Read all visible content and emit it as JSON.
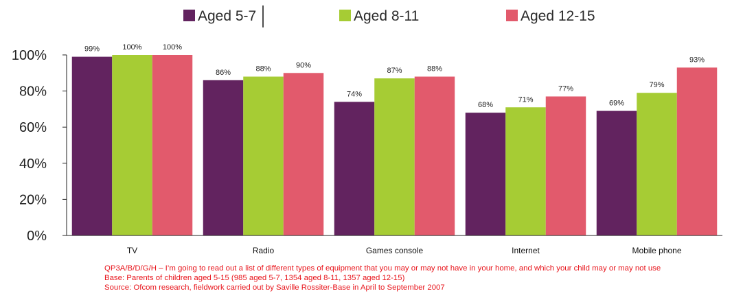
{
  "chart_data": {
    "type": "bar",
    "categories": [
      "TV",
      "Radio",
      "Games console",
      "Internet",
      "Mobile phone"
    ],
    "series": [
      {
        "name": "Aged 5-7",
        "color": "#62235f",
        "values": [
          99,
          86,
          74,
          68,
          69
        ],
        "labels": [
          "99%",
          "86%",
          "74%",
          "68%",
          "69%"
        ]
      },
      {
        "name": "Aged 8-11",
        "color": "#a6cc34",
        "values": [
          100,
          88,
          87,
          71,
          79
        ],
        "labels": [
          "100%",
          "88%",
          "87%",
          "71%",
          "79%"
        ]
      },
      {
        "name": "Aged 12-15",
        "color": "#e25a6c",
        "values": [
          100,
          90,
          88,
          77,
          93
        ],
        "labels": [
          "100%",
          "90%",
          "88%",
          "77%",
          "93%"
        ]
      }
    ],
    "ylim": [
      0,
      100
    ],
    "yticks": [
      0,
      20,
      40,
      60,
      80,
      100
    ],
    "ytick_labels": [
      "0%",
      "20%",
      "40%",
      "60%",
      "80%",
      "100%"
    ],
    "legend_position": "top",
    "grid": false
  },
  "notes": [
    "QP3A/B/D/G/H – I’m going to read out a list of different types of equipment that you may or may not have in your home, and which your child may or may not use",
    "Base: Parents of children aged 5-15 (985 aged 5-7, 1354 aged 8-11, 1357 aged 12-15)",
    "Source: Ofcom research, fieldwork carried out by Saville Rossiter-Base in April to September 2007"
  ]
}
